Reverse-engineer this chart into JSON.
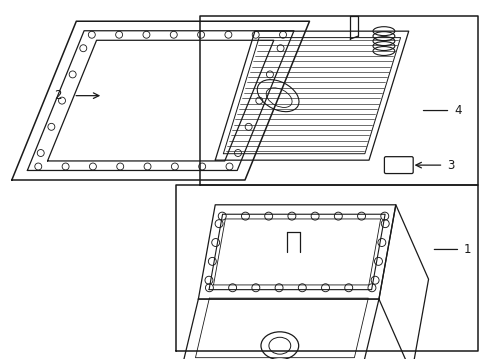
{
  "background_color": "#ffffff",
  "line_color": "#1a1a1a",
  "line_width": 0.9,
  "label_fontsize": 8.5,
  "figsize": [
    4.89,
    3.6
  ],
  "dpi": 100
}
